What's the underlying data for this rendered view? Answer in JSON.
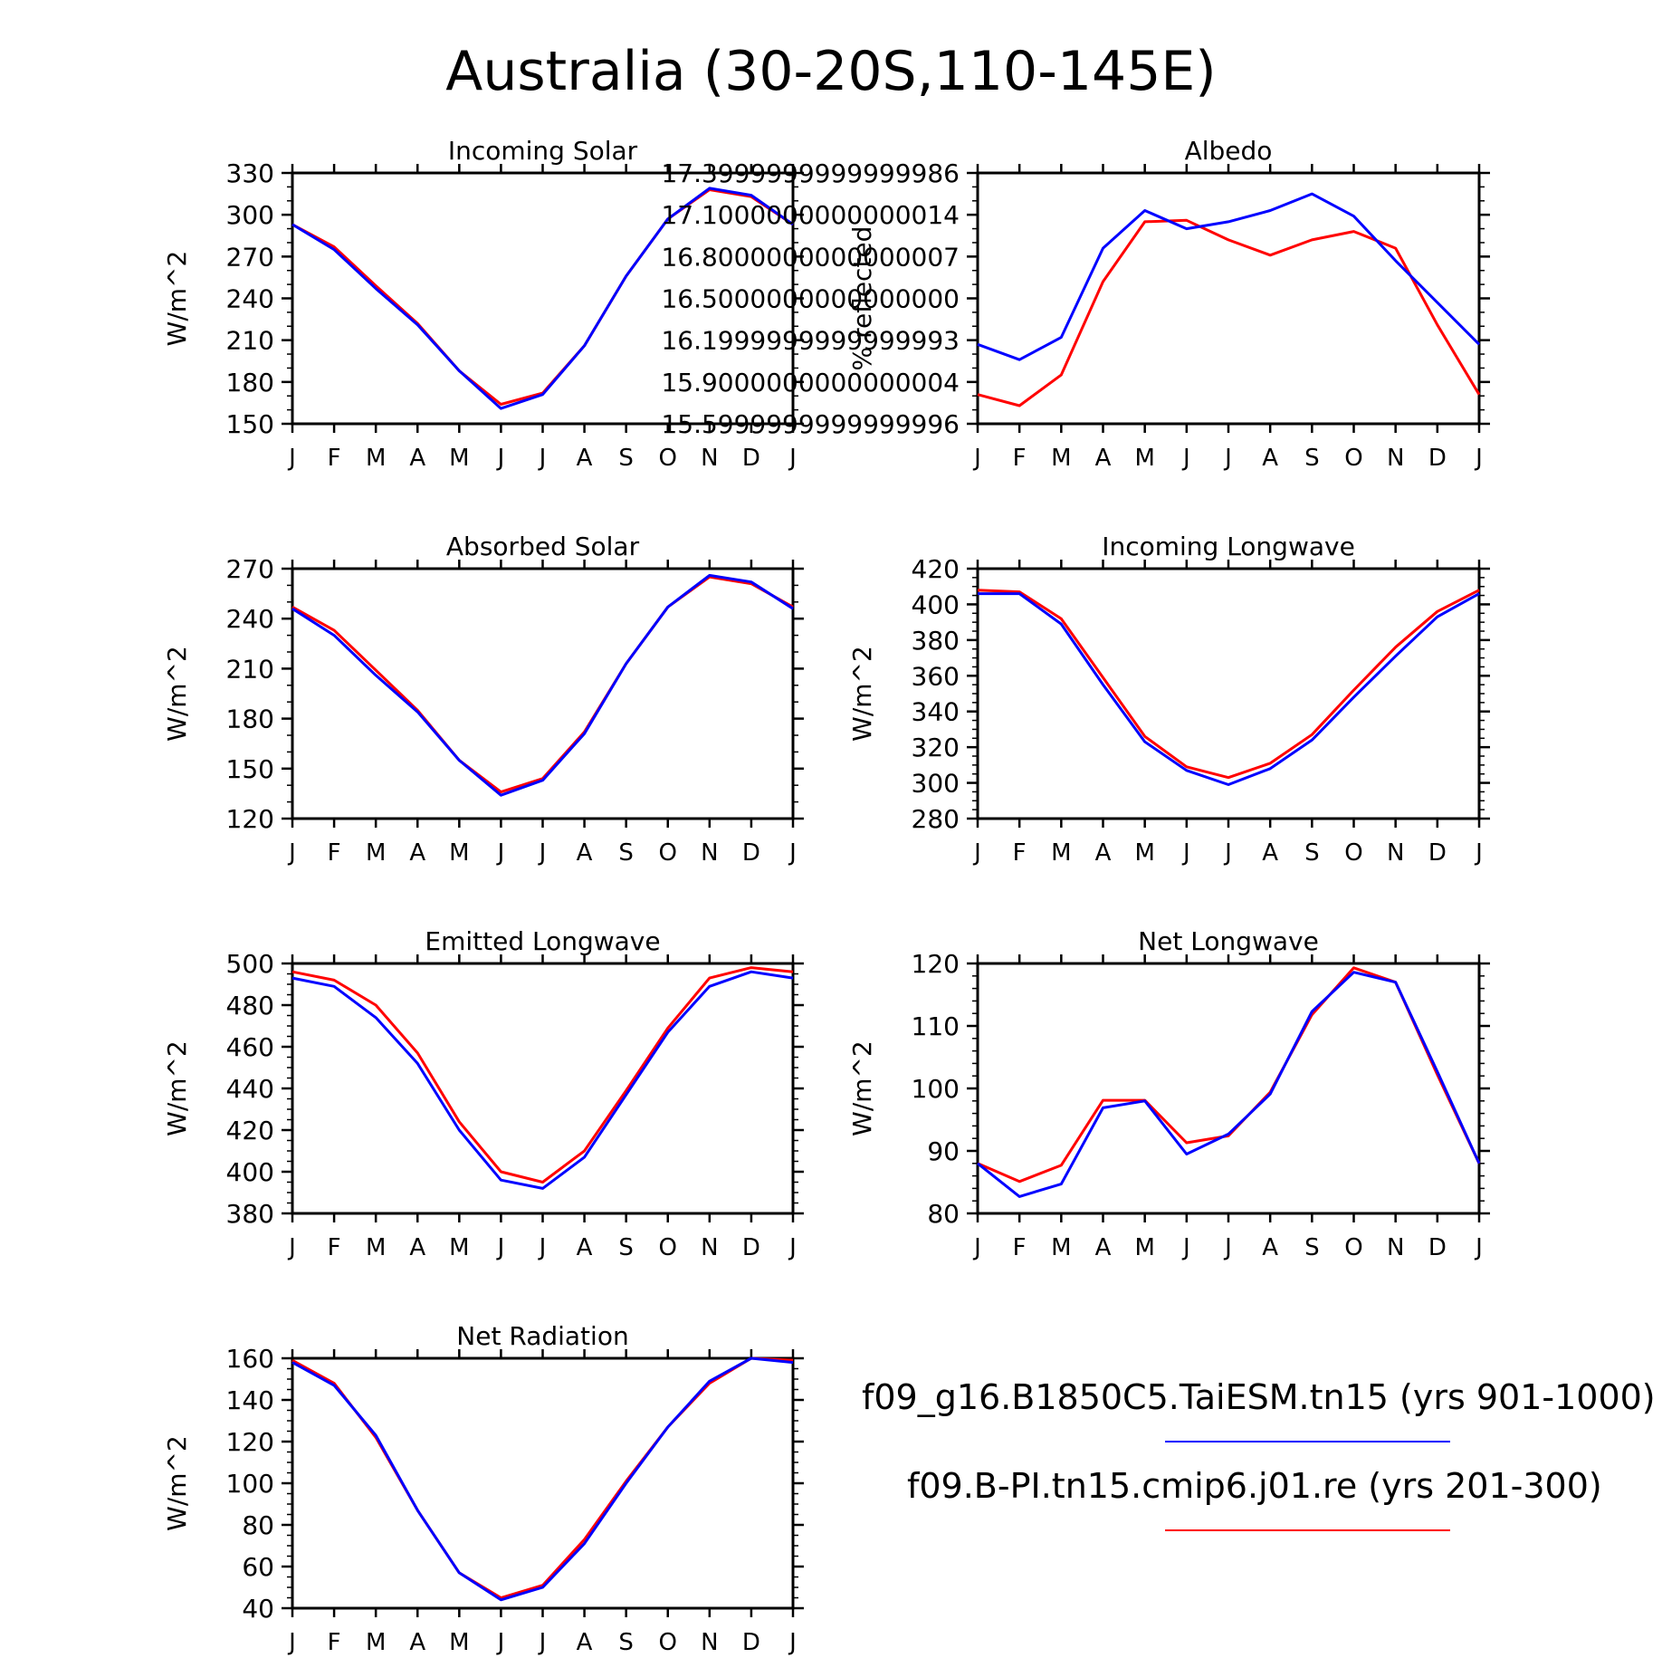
{
  "page_title": "Australia (30-20S,110-145E)",
  "colors": {
    "case1": "#0000ff",
    "case2": "#ff0000",
    "axis": "#000000"
  },
  "legend": {
    "case1": {
      "label": "f09_g16.B1850C5.TaiESM.tn15 (yrs 901-1000)",
      "color": "#0000ff"
    },
    "case2": {
      "label": "f09.B-PI.tn15.cmip6.j01.re (yrs 201-300)",
      "color": "#ff0000"
    }
  },
  "chart_data": [
    {
      "type": "line",
      "title": "Incoming Solar",
      "ylabel": "W/m^2",
      "x": [
        "J",
        "F",
        "M",
        "A",
        "M",
        "J",
        "J",
        "A",
        "S",
        "O",
        "N",
        "D",
        "J"
      ],
      "ylim": [
        150,
        330
      ],
      "yticks": [
        150,
        180,
        210,
        240,
        270,
        300,
        330
      ],
      "yminor": 10,
      "series": [
        {
          "name": "case2",
          "color": "#ff0000",
          "values": [
            293,
            277,
            249,
            222,
            188,
            164,
            172,
            206,
            256,
            297,
            318,
            313,
            293
          ]
        },
        {
          "name": "case1",
          "color": "#0000ff",
          "values": [
            293,
            275,
            247,
            221,
            188,
            161,
            171,
            206,
            256,
            297,
            319,
            314,
            293
          ]
        }
      ]
    },
    {
      "type": "line",
      "title": "Albedo",
      "ylabel": "% reflected",
      "x": [
        "J",
        "F",
        "M",
        "A",
        "M",
        "J",
        "J",
        "A",
        "S",
        "O",
        "N",
        "D",
        "J"
      ],
      "ylim": [
        15.6,
        17.4
      ],
      "yticks": [
        15.6,
        15.9,
        16.2,
        16.5,
        16.8,
        17.1,
        17.4
      ],
      "yminor": 0.1,
      "series": [
        {
          "name": "case2",
          "color": "#ff0000",
          "values": [
            15.81,
            15.73,
            15.95,
            16.62,
            17.05,
            17.06,
            16.92,
            16.81,
            16.92,
            16.98,
            16.86,
            16.31,
            15.81
          ]
        },
        {
          "name": "case1",
          "color": "#0000ff",
          "values": [
            16.17,
            16.06,
            16.22,
            16.86,
            17.13,
            17.0,
            17.05,
            17.13,
            17.25,
            17.09,
            16.77,
            16.47,
            16.17
          ]
        }
      ]
    },
    {
      "type": "line",
      "title": "Absorbed Solar",
      "ylabel": "W/m^2",
      "x": [
        "J",
        "F",
        "M",
        "A",
        "M",
        "J",
        "J",
        "A",
        "S",
        "O",
        "N",
        "D",
        "J"
      ],
      "ylim": [
        120,
        270
      ],
      "yticks": [
        120,
        150,
        180,
        210,
        240,
        270
      ],
      "yminor": 10,
      "series": [
        {
          "name": "case2",
          "color": "#ff0000",
          "values": [
            247,
            233,
            209,
            185,
            155,
            136,
            144,
            172,
            213,
            247,
            265,
            261,
            247
          ]
        },
        {
          "name": "case1",
          "color": "#0000ff",
          "values": [
            246,
            230,
            206,
            184,
            155,
            134,
            143,
            171,
            213,
            247,
            266,
            262,
            246
          ]
        }
      ]
    },
    {
      "type": "line",
      "title": "Incoming Longwave",
      "ylabel": "W/m^2",
      "x": [
        "J",
        "F",
        "M",
        "A",
        "M",
        "J",
        "J",
        "A",
        "S",
        "O",
        "N",
        "D",
        "J"
      ],
      "ylim": [
        280,
        420
      ],
      "yticks": [
        280,
        300,
        320,
        340,
        360,
        380,
        400,
        420
      ],
      "yminor": 5,
      "series": [
        {
          "name": "case2",
          "color": "#ff0000",
          "values": [
            408,
            407,
            392,
            359,
            326,
            309,
            303,
            311,
            327,
            352,
            376,
            396,
            408
          ]
        },
        {
          "name": "case1",
          "color": "#0000ff",
          "values": [
            406,
            406,
            389,
            355,
            323,
            307,
            299,
            308,
            324,
            348,
            371,
            393,
            406
          ]
        }
      ]
    },
    {
      "type": "line",
      "title": "Emitted Longwave",
      "ylabel": "W/m^2",
      "x": [
        "J",
        "F",
        "M",
        "A",
        "M",
        "J",
        "J",
        "A",
        "S",
        "O",
        "N",
        "D",
        "J"
      ],
      "ylim": [
        380,
        500
      ],
      "yticks": [
        380,
        400,
        420,
        440,
        460,
        480,
        500
      ],
      "yminor": 5,
      "series": [
        {
          "name": "case2",
          "color": "#ff0000",
          "values": [
            496,
            492,
            480,
            457,
            424,
            400,
            395,
            410,
            439,
            469,
            493,
            498,
            496
          ]
        },
        {
          "name": "case1",
          "color": "#0000ff",
          "values": [
            493,
            489,
            474,
            452,
            420,
            396,
            392,
            407,
            437,
            467,
            489,
            496,
            493
          ]
        }
      ]
    },
    {
      "type": "line",
      "title": "Net Longwave",
      "ylabel": "W/m^2",
      "x": [
        "J",
        "F",
        "M",
        "A",
        "M",
        "J",
        "J",
        "A",
        "S",
        "O",
        "N",
        "D",
        "J"
      ],
      "ylim": [
        80,
        120
      ],
      "yticks": [
        80,
        90,
        100,
        110,
        120
      ],
      "yminor": 2,
      "series": [
        {
          "name": "case2",
          "color": "#ff0000",
          "values": [
            88,
            85.1,
            87.7,
            98.1,
            98.1,
            91.3,
            92.4,
            99.4,
            111.8,
            119.3,
            117.0,
            102.2,
            88
          ]
        },
        {
          "name": "case1",
          "color": "#0000ff",
          "values": [
            88,
            82.7,
            84.7,
            96.9,
            98.0,
            89.5,
            92.7,
            99.1,
            112.3,
            118.6,
            117.0,
            102.7,
            88
          ]
        }
      ]
    },
    {
      "type": "line",
      "title": "Net Radiation",
      "ylabel": "W/m^2",
      "x": [
        "J",
        "F",
        "M",
        "A",
        "M",
        "J",
        "J",
        "A",
        "S",
        "O",
        "N",
        "D",
        "J"
      ],
      "ylim": [
        40,
        160
      ],
      "yticks": [
        40,
        60,
        80,
        100,
        120,
        140,
        160
      ],
      "yminor": 5,
      "series": [
        {
          "name": "case2",
          "color": "#ff0000",
          "values": [
            159,
            148,
            122,
            87,
            57,
            45,
            51,
            73,
            101,
            127,
            148,
            160,
            159
          ]
        },
        {
          "name": "case1",
          "color": "#0000ff",
          "values": [
            158,
            147,
            123,
            87,
            57,
            44,
            50,
            71,
            100,
            127,
            149,
            160,
            158
          ]
        }
      ]
    }
  ]
}
